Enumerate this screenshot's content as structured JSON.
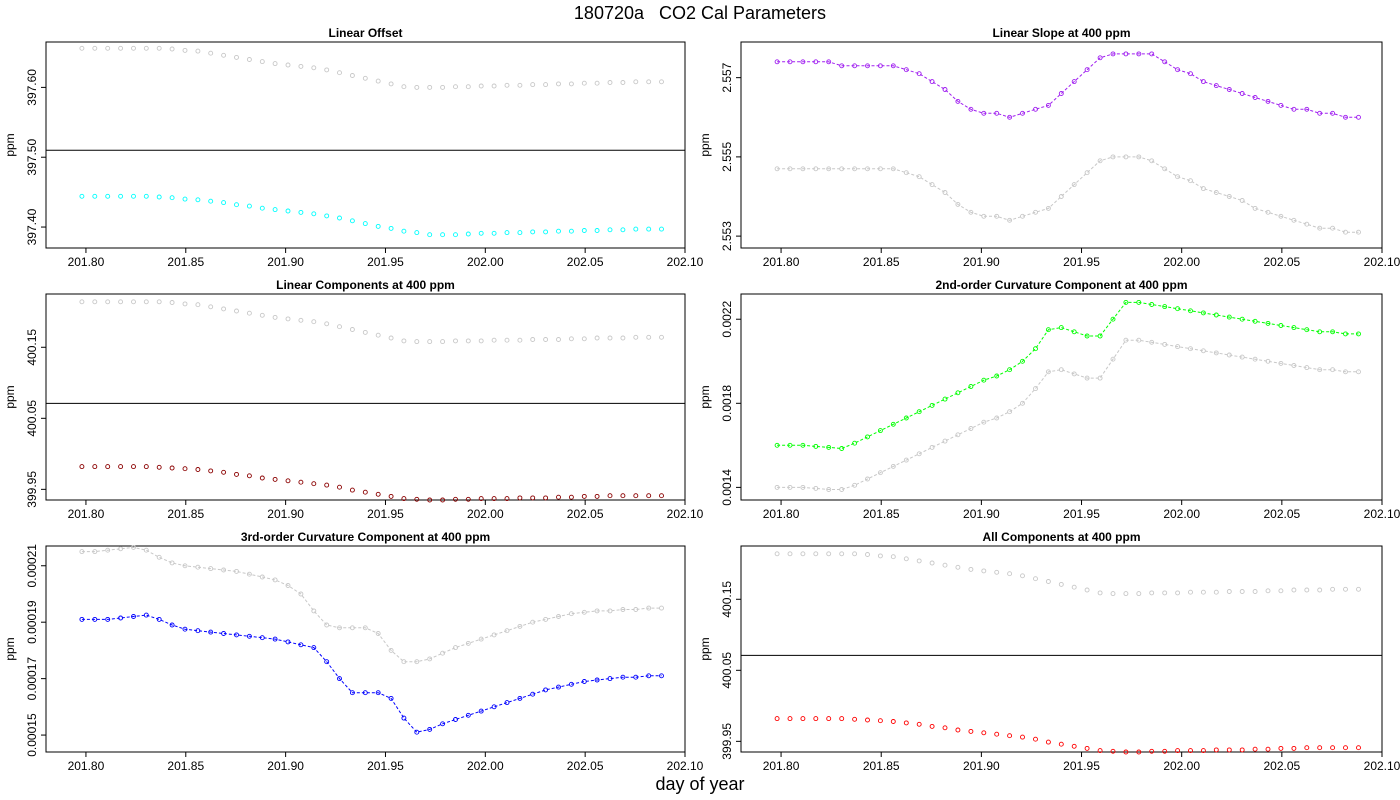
{
  "title": "180720a   CO2 Cal Parameters",
  "xlabel": "day of year",
  "chart_data": [
    {
      "type": "scatter",
      "title": "Linear Offset",
      "ylabel": "ppm",
      "xlim": [
        201.78,
        202.1
      ],
      "ylim": [
        397.37,
        397.665
      ],
      "x_ticks": [
        "201.80",
        "201.85",
        "201.90",
        "201.95",
        "202.00",
        "202.05",
        "202.10"
      ],
      "y_ticks": [
        "397.40",
        "397.50",
        "397.60"
      ],
      "hline": 397.51,
      "series": [
        {
          "color": "#00ffff",
          "connected": false,
          "values": [
            397.444,
            397.444,
            397.444,
            397.444,
            397.444,
            397.444,
            397.443,
            397.442,
            397.44,
            397.439,
            397.437,
            397.435,
            397.432,
            397.43,
            397.427,
            397.425,
            397.423,
            397.421,
            397.419,
            397.416,
            397.413,
            397.409,
            397.405,
            397.401,
            397.398,
            397.394,
            397.392,
            397.389,
            397.389,
            397.389,
            397.39,
            397.391,
            397.391,
            397.392,
            397.392,
            397.393,
            397.393,
            397.394,
            397.394,
            397.395,
            397.395,
            397.396,
            397.396,
            397.397,
            397.397,
            397.397
          ]
        },
        {
          "color": "#c8c8c8",
          "connected": false,
          "values": [
            397.656,
            397.656,
            397.656,
            397.656,
            397.656,
            397.656,
            397.656,
            397.655,
            397.653,
            397.652,
            397.649,
            397.646,
            397.643,
            397.64,
            397.637,
            397.634,
            397.632,
            397.63,
            397.628,
            397.625,
            397.621,
            397.617,
            397.613,
            397.609,
            397.605,
            397.601,
            397.6,
            397.6,
            397.6,
            397.601,
            397.601,
            397.602,
            397.602,
            397.603,
            397.603,
            397.604,
            397.604,
            397.605,
            397.605,
            397.606,
            397.606,
            397.607,
            397.607,
            397.608,
            397.608,
            397.608
          ]
        }
      ]
    },
    {
      "type": "line",
      "title": "Linear Slope at 400 ppm",
      "ylabel": "ppm",
      "xlim": [
        201.78,
        202.1
      ],
      "ylim": [
        2.5527,
        2.5579
      ],
      "x_ticks": [
        "201.80",
        "201.85",
        "201.90",
        "201.95",
        "202.00",
        "202.05",
        "202.10"
      ],
      "y_ticks": [
        "2.553",
        "2.555",
        "2.557"
      ],
      "series": [
        {
          "color": "#a020f0",
          "connected": true,
          "values": [
            2.5574,
            2.5574,
            2.5574,
            2.5574,
            2.5574,
            2.5573,
            2.5573,
            2.5573,
            2.5573,
            2.5573,
            2.5572,
            2.5571,
            2.5569,
            2.5567,
            2.5564,
            2.5562,
            2.5561,
            2.5561,
            2.556,
            2.5561,
            2.5562,
            2.5563,
            2.5566,
            2.5569,
            2.5572,
            2.5575,
            2.5576,
            2.5576,
            2.5576,
            2.5576,
            2.5574,
            2.5572,
            2.5571,
            2.5569,
            2.5568,
            2.5567,
            2.5566,
            2.5565,
            2.5564,
            2.5563,
            2.5562,
            2.5562,
            2.5561,
            2.5561,
            2.556,
            2.556
          ]
        },
        {
          "color": "#c8c8c8",
          "connected": true,
          "values": [
            2.5547,
            2.5547,
            2.5547,
            2.5547,
            2.5547,
            2.5547,
            2.5547,
            2.5547,
            2.5547,
            2.5547,
            2.5546,
            2.5545,
            2.5543,
            2.5541,
            2.5538,
            2.5536,
            2.5535,
            2.5535,
            2.5534,
            2.5535,
            2.5536,
            2.5537,
            2.554,
            2.5543,
            2.5546,
            2.5549,
            2.555,
            2.555,
            2.555,
            2.5549,
            2.5547,
            2.5545,
            2.5544,
            2.5542,
            2.5541,
            2.554,
            2.5539,
            2.5537,
            2.5536,
            2.5535,
            2.5534,
            2.5533,
            2.5532,
            2.5532,
            2.5531,
            2.5531
          ]
        }
      ]
    },
    {
      "type": "scatter",
      "title": "Linear Components at 400 ppm",
      "ylabel": "ppm",
      "xlim": [
        201.78,
        202.1
      ],
      "ylim": [
        399.935,
        400.225
      ],
      "x_ticks": [
        "201.80",
        "201.85",
        "201.90",
        "201.95",
        "202.00",
        "202.05",
        "202.10"
      ],
      "y_ticks": [
        "399.95",
        "400.05",
        "400.15"
      ],
      "hline": 400.071,
      "series": [
        {
          "color": "#8b0000",
          "connected": false,
          "values": [
            399.982,
            399.982,
            399.982,
            399.982,
            399.982,
            399.982,
            399.981,
            399.98,
            399.979,
            399.978,
            399.976,
            399.974,
            399.971,
            399.969,
            399.966,
            399.964,
            399.962,
            399.96,
            399.958,
            399.956,
            399.953,
            399.949,
            399.946,
            399.943,
            399.94,
            399.937,
            399.936,
            399.935,
            399.935,
            399.936,
            399.936,
            399.937,
            399.937,
            399.937,
            399.938,
            399.938,
            399.938,
            399.939,
            399.939,
            399.94,
            399.94,
            399.941,
            399.941,
            399.941,
            399.941,
            399.941
          ]
        },
        {
          "color": "#c8c8c8",
          "connected": false,
          "values": [
            400.214,
            400.214,
            400.214,
            400.214,
            400.214,
            400.214,
            400.214,
            400.213,
            400.211,
            400.21,
            400.207,
            400.204,
            400.201,
            400.198,
            400.195,
            400.192,
            400.19,
            400.188,
            400.186,
            400.183,
            400.179,
            400.175,
            400.171,
            400.167,
            400.163,
            400.159,
            400.158,
            400.158,
            400.158,
            400.159,
            400.159,
            400.159,
            400.16,
            400.16,
            400.16,
            400.161,
            400.161,
            400.161,
            400.162,
            400.162,
            400.163,
            400.163,
            400.163,
            400.164,
            400.164,
            400.164
          ]
        }
      ]
    },
    {
      "type": "line",
      "title": "2nd-order Curvature Component at 400 ppm",
      "ylabel": "ppm",
      "xlim": [
        201.78,
        202.1
      ],
      "ylim": [
        0.00134,
        0.00232
      ],
      "x_ticks": [
        "201.80",
        "201.85",
        "201.90",
        "201.95",
        "202.00",
        "202.05",
        "202.10"
      ],
      "y_ticks": [
        "0.0014",
        "0.0018",
        "0.0022"
      ],
      "series": [
        {
          "color": "#00ff00",
          "connected": true,
          "values": [
            0.0016,
            0.0016,
            0.0016,
            0.001595,
            0.00159,
            0.001585,
            0.00161,
            0.00164,
            0.00167,
            0.0017,
            0.00173,
            0.00176,
            0.00179,
            0.00182,
            0.00185,
            0.00188,
            0.00191,
            0.00193,
            0.00196,
            0.002,
            0.00206,
            0.00215,
            0.00216,
            0.00214,
            0.00212,
            0.00212,
            0.0022,
            0.00228,
            0.00228,
            0.00227,
            0.00226,
            0.00225,
            0.00224,
            0.00223,
            0.00222,
            0.00221,
            0.0022,
            0.00219,
            0.00218,
            0.00217,
            0.00216,
            0.00215,
            0.00214,
            0.00214,
            0.00213,
            0.00213
          ]
        },
        {
          "color": "#c8c8c8",
          "connected": true,
          "values": [
            0.0014,
            0.0014,
            0.0014,
            0.001395,
            0.00139,
            0.00139,
            0.00141,
            0.00144,
            0.00147,
            0.0015,
            0.00153,
            0.00156,
            0.00159,
            0.00162,
            0.00165,
            0.00168,
            0.00171,
            0.00173,
            0.00176,
            0.0018,
            0.00187,
            0.00195,
            0.00196,
            0.00194,
            0.00192,
            0.00192,
            0.00201,
            0.0021,
            0.0021,
            0.00209,
            0.00208,
            0.00207,
            0.00206,
            0.00205,
            0.00204,
            0.00203,
            0.00202,
            0.00201,
            0.002,
            0.00199,
            0.00198,
            0.00197,
            0.00196,
            0.00196,
            0.00195,
            0.00195
          ]
        }
      ]
    },
    {
      "type": "line",
      "title": "3rd-order Curvature Component at 400 ppm",
      "ylabel": "ppm",
      "xlim": [
        201.78,
        202.1
      ],
      "ylim": [
        0.000144,
        0.000217
      ],
      "x_ticks": [
        "201.80",
        "201.85",
        "201.90",
        "201.95",
        "202.00",
        "202.05",
        "202.10"
      ],
      "y_ticks": [
        "0.00015",
        "0.00017",
        "0.00019",
        "0.00021"
      ],
      "series": [
        {
          "color": "#0000ff",
          "connected": true,
          "values": [
            0.000191,
            0.000191,
            0.000191,
            0.0001915,
            0.000192,
            0.0001925,
            0.000191,
            0.000189,
            0.0001875,
            0.000187,
            0.0001865,
            0.000186,
            0.0001855,
            0.000185,
            0.0001845,
            0.000184,
            0.000183,
            0.000182,
            0.000181,
            0.000176,
            0.00017,
            0.000165,
            0.000165,
            0.000165,
            0.000163,
            0.000156,
            0.000151,
            0.000152,
            0.000154,
            0.0001555,
            0.000157,
            0.0001585,
            0.00016,
            0.0001615,
            0.000163,
            0.0001645,
            0.000166,
            0.000167,
            0.000168,
            0.000169,
            0.0001695,
            0.00017,
            0.0001705,
            0.0001705,
            0.000171,
            0.000171
          ]
        },
        {
          "color": "#c8c8c8",
          "connected": true,
          "values": [
            0.000215,
            0.000215,
            0.0002155,
            0.000216,
            0.0002165,
            0.0002155,
            0.000213,
            0.000211,
            0.00021,
            0.0002095,
            0.000209,
            0.0002085,
            0.000208,
            0.000207,
            0.000206,
            0.000205,
            0.000203,
            0.0002,
            0.000194,
            0.000189,
            0.000188,
            0.000188,
            0.000188,
            0.000186,
            0.00018,
            0.000176,
            0.000176,
            0.000177,
            0.000179,
            0.000181,
            0.0001825,
            0.000184,
            0.0001855,
            0.000187,
            0.0001885,
            0.00019,
            0.000191,
            0.000192,
            0.000193,
            0.0001935,
            0.000194,
            0.000194,
            0.0001945,
            0.0001945,
            0.000195,
            0.000195
          ]
        }
      ]
    },
    {
      "type": "scatter",
      "title": "All Components at 400 ppm",
      "ylabel": "ppm",
      "xlim": [
        201.78,
        202.1
      ],
      "ylim": [
        399.935,
        400.225
      ],
      "x_ticks": [
        "201.80",
        "201.85",
        "201.90",
        "201.95",
        "202.00",
        "202.05",
        "202.10"
      ],
      "y_ticks": [
        "399.95",
        "400.05",
        "400.15"
      ],
      "hline": 400.071,
      "series": [
        {
          "color": "#ff0000",
          "connected": false,
          "values": [
            399.982,
            399.982,
            399.982,
            399.982,
            399.982,
            399.982,
            399.981,
            399.98,
            399.979,
            399.978,
            399.976,
            399.974,
            399.971,
            399.969,
            399.966,
            399.964,
            399.962,
            399.96,
            399.958,
            399.956,
            399.953,
            399.949,
            399.946,
            399.943,
            399.94,
            399.937,
            399.936,
            399.935,
            399.935,
            399.936,
            399.936,
            399.937,
            399.937,
            399.937,
            399.938,
            399.938,
            399.938,
            399.939,
            399.939,
            399.94,
            399.94,
            399.941,
            399.941,
            399.941,
            399.941,
            399.941
          ]
        },
        {
          "color": "#c8c8c8",
          "connected": false,
          "values": [
            400.214,
            400.214,
            400.214,
            400.214,
            400.214,
            400.214,
            400.214,
            400.213,
            400.211,
            400.21,
            400.207,
            400.204,
            400.201,
            400.198,
            400.195,
            400.192,
            400.19,
            400.188,
            400.186,
            400.183,
            400.179,
            400.175,
            400.171,
            400.167,
            400.163,
            400.159,
            400.158,
            400.158,
            400.158,
            400.159,
            400.159,
            400.159,
            400.16,
            400.16,
            400.16,
            400.161,
            400.161,
            400.161,
            400.162,
            400.162,
            400.163,
            400.163,
            400.163,
            400.164,
            400.164,
            400.164
          ]
        }
      ]
    }
  ]
}
